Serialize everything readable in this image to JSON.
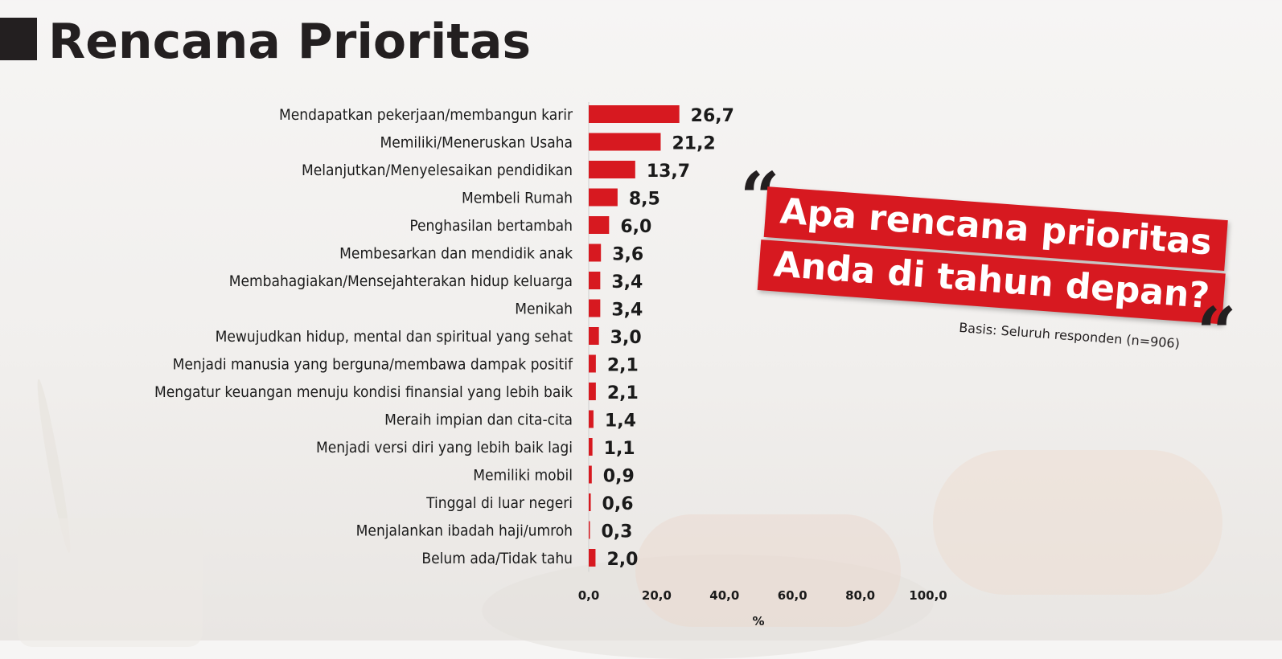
{
  "title": "Rencana Prioritas",
  "quote": {
    "line1": "Apa rencana prioritas",
    "line2": "Anda di tahun depan?",
    "basis": "Basis: Seluruh responden (n=906)",
    "open_mark": "“",
    "close_mark": "“"
  },
  "colors": {
    "bar": "#d71920",
    "title": "#231f20",
    "quote_band": "#d71920"
  },
  "chart_data": {
    "type": "bar",
    "orientation": "horizontal",
    "categories": [
      "Mendapatkan pekerjaan/membangun karir",
      "Memiliki/Meneruskan Usaha",
      "Melanjutkan/Menyelesaikan pendidikan",
      "Membeli Rumah",
      "Penghasilan bertambah",
      "Membesarkan dan mendidik anak",
      "Membahagiakan/Mensejahterakan hidup keluarga",
      "Menikah",
      "Mewujudkan hidup, mental dan spiritual yang sehat",
      "Menjadi manusia yang berguna/membawa dampak positif",
      "Mengatur keuangan menuju kondisi finansial yang lebih baik",
      "Meraih impian dan cita-cita",
      "Menjadi versi diri yang lebih baik lagi",
      "Memiliki mobil",
      "Tinggal di luar negeri",
      "Menjalankan ibadah haji/umroh",
      "Belum ada/Tidak tahu"
    ],
    "values": [
      26.7,
      21.2,
      13.7,
      8.5,
      6.0,
      3.6,
      3.4,
      3.4,
      3.0,
      2.1,
      2.1,
      1.4,
      1.1,
      0.9,
      0.6,
      0.3,
      2.0
    ],
    "value_labels": [
      "26,7",
      "21,2",
      "13,7",
      "8,5",
      "6,0",
      "3,6",
      "3,4",
      "3,4",
      "3,0",
      "2,1",
      "2,1",
      "1,4",
      "1,1",
      "0,9",
      "0,6",
      "0,3",
      "2,0"
    ],
    "xlim": [
      0,
      100
    ],
    "x_ticks": [
      "0,0",
      "20,0",
      "40,0",
      "60,0",
      "80,0",
      "100,0"
    ],
    "x_tick_values": [
      0,
      20,
      40,
      60,
      80,
      100
    ],
    "xlabel": "%",
    "grid": false,
    "legend": "none"
  }
}
